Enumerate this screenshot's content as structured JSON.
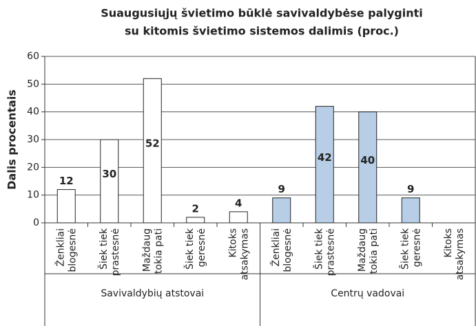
{
  "chart_data": {
    "type": "bar",
    "title": [
      "Suaugusiųjų švietimo būklė savivaldybėse palyginti",
      "su kitomis švietimo sistemos dalimis (proc.)"
    ],
    "ylabel": "Dalis procentais",
    "groups": [
      "Savivaldybių atstovai",
      "Centrų vadovai"
    ],
    "group_colors": [
      "#ffffff",
      "#b7cee6"
    ],
    "categories": [
      [
        "Ženkliai",
        "blogesnė"
      ],
      [
        "Šiek tiek",
        "prastesnė"
      ],
      [
        "Maždaug",
        "tokia pati"
      ],
      [
        "Šiek tiek",
        "geresnė"
      ],
      [
        "Kitoks",
        "atsakymas"
      ],
      [
        "Ženkliai",
        "blogesnė"
      ],
      [
        "Šiek tiek",
        "prastesnė"
      ],
      [
        "Maždaug",
        "tokia pati"
      ],
      [
        "Šiek tiek",
        "geresnė"
      ],
      [
        "Kitoks",
        "atsakymas"
      ]
    ],
    "values": [
      12,
      30,
      52,
      2,
      4,
      9,
      42,
      40,
      9,
      null
    ],
    "ylim": [
      0,
      60
    ],
    "yticks": [
      0,
      10,
      20,
      30,
      40,
      50,
      60
    ],
    "grid": true
  }
}
